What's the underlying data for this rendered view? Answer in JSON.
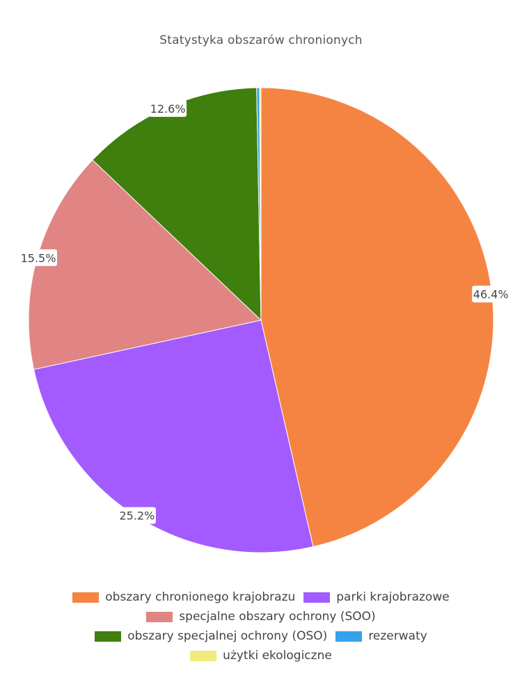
{
  "chart_data": {
    "type": "pie",
    "title": "Statystyka obszarów chronionych",
    "series": [
      {
        "name": "obszary chronionego krajobrazu",
        "value": 46.4,
        "label": "46.4%",
        "color": "#f58442"
      },
      {
        "name": "parki krajobrazowe",
        "value": 25.2,
        "label": "25.2%",
        "color": "#a35bff"
      },
      {
        "name": "specjalne obszary ochrony (SOO)",
        "value": 15.5,
        "label": "15.5%",
        "color": "#e08484"
      },
      {
        "name": "obszary specjalnej ochrony (OSO)",
        "value": 12.6,
        "label": "12.6%",
        "color": "#3f7f0e"
      },
      {
        "name": "rezerwaty",
        "value": 0.2,
        "label": "",
        "color": "#36a2eb"
      },
      {
        "name": "użytki ekologiczne",
        "value": 0.1,
        "label": "",
        "color": "#f0eb7a"
      }
    ],
    "legend_position": "bottom"
  }
}
